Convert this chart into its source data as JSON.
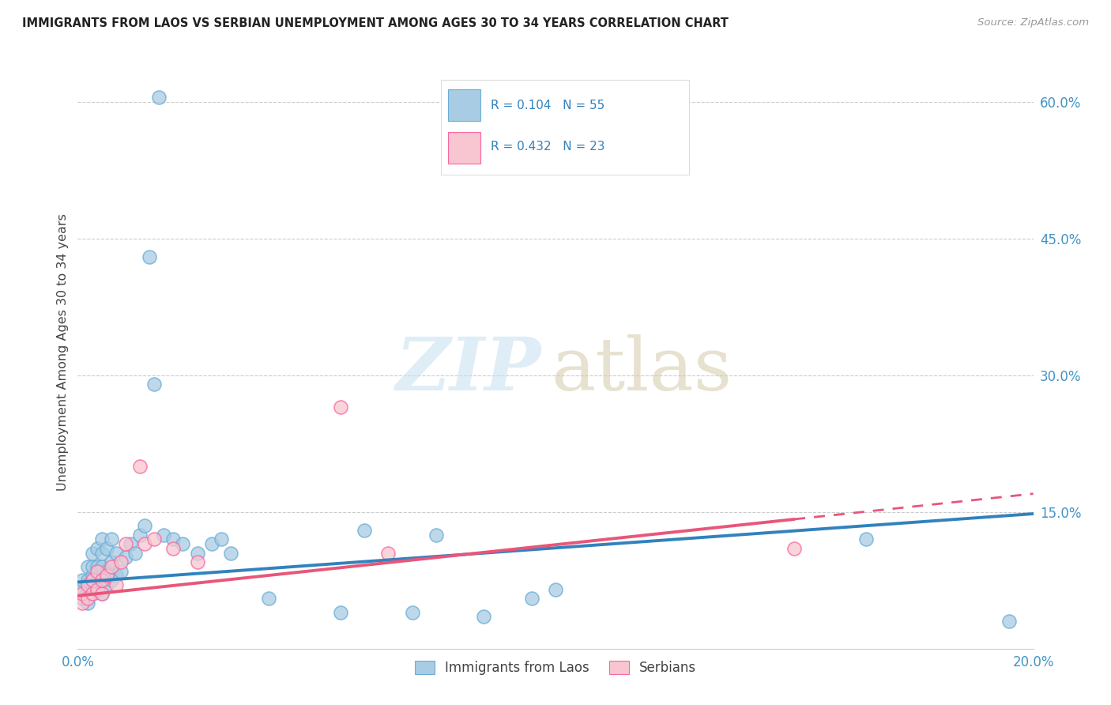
{
  "title": "IMMIGRANTS FROM LAOS VS SERBIAN UNEMPLOYMENT AMONG AGES 30 TO 34 YEARS CORRELATION CHART",
  "source": "Source: ZipAtlas.com",
  "ylabel": "Unemployment Among Ages 30 to 34 years",
  "xlim": [
    0.0,
    0.2
  ],
  "ylim": [
    0.0,
    0.65
  ],
  "xticks": [
    0.0,
    0.05,
    0.1,
    0.15,
    0.2
  ],
  "xticklabels": [
    "0.0%",
    "",
    "",
    "",
    "20.0%"
  ],
  "yticks_right": [
    0.15,
    0.3,
    0.45,
    0.6
  ],
  "ytick_labels_right": [
    "15.0%",
    "30.0%",
    "45.0%",
    "60.0%"
  ],
  "blue_color": "#a8cce4",
  "blue_edge_color": "#6baed6",
  "pink_color": "#f7c6d0",
  "pink_edge_color": "#f768a1",
  "blue_line_color": "#3182bd",
  "pink_line_color": "#e8567a",
  "tick_color": "#4393c3",
  "legend_text_color": "#3182bd",
  "legend_label_blue": "Immigrants from Laos",
  "legend_label_pink": "Serbians",
  "blue_trend_x0": 0.0,
  "blue_trend_y0": 0.073,
  "blue_trend_x1": 0.2,
  "blue_trend_y1": 0.148,
  "pink_trend_x0": 0.0,
  "pink_trend_y0": 0.058,
  "pink_trend_x1": 0.2,
  "pink_trend_y1": 0.17,
  "blue_x": [
    0.001,
    0.001,
    0.001,
    0.002,
    0.002,
    0.002,
    0.002,
    0.003,
    0.003,
    0.003,
    0.003,
    0.003,
    0.004,
    0.004,
    0.004,
    0.004,
    0.005,
    0.005,
    0.005,
    0.005,
    0.005,
    0.006,
    0.006,
    0.006,
    0.007,
    0.007,
    0.007,
    0.008,
    0.008,
    0.009,
    0.01,
    0.011,
    0.012,
    0.013,
    0.014,
    0.015,
    0.016,
    0.017,
    0.018,
    0.02,
    0.022,
    0.025,
    0.028,
    0.03,
    0.032,
    0.04,
    0.055,
    0.06,
    0.07,
    0.075,
    0.085,
    0.095,
    0.1,
    0.165,
    0.195
  ],
  "blue_y": [
    0.055,
    0.065,
    0.075,
    0.05,
    0.065,
    0.075,
    0.09,
    0.06,
    0.07,
    0.08,
    0.09,
    0.105,
    0.065,
    0.075,
    0.09,
    0.11,
    0.06,
    0.075,
    0.09,
    0.105,
    0.12,
    0.07,
    0.085,
    0.11,
    0.075,
    0.095,
    0.12,
    0.08,
    0.105,
    0.085,
    0.1,
    0.115,
    0.105,
    0.125,
    0.135,
    0.43,
    0.29,
    0.605,
    0.125,
    0.12,
    0.115,
    0.105,
    0.115,
    0.12,
    0.105,
    0.055,
    0.04,
    0.13,
    0.04,
    0.125,
    0.035,
    0.055,
    0.065,
    0.12,
    0.03
  ],
  "pink_x": [
    0.001,
    0.001,
    0.002,
    0.002,
    0.003,
    0.003,
    0.004,
    0.004,
    0.005,
    0.005,
    0.006,
    0.007,
    0.008,
    0.009,
    0.01,
    0.013,
    0.014,
    0.016,
    0.02,
    0.025,
    0.055,
    0.065,
    0.15
  ],
  "pink_y": [
    0.05,
    0.06,
    0.055,
    0.07,
    0.06,
    0.075,
    0.065,
    0.085,
    0.06,
    0.075,
    0.08,
    0.09,
    0.07,
    0.095,
    0.115,
    0.2,
    0.115,
    0.12,
    0.11,
    0.095,
    0.265,
    0.105,
    0.11
  ]
}
